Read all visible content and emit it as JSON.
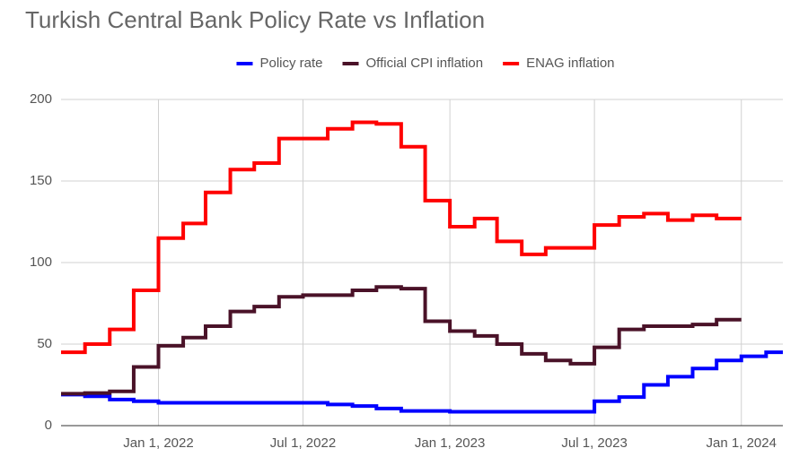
{
  "chart_data": {
    "type": "step-line",
    "title": "Turkish Central Bank Policy Rate vs Inflation",
    "x": [
      "2021-09-01",
      "2021-10-01",
      "2021-11-01",
      "2021-12-01",
      "2022-01-01",
      "2022-02-01",
      "2022-03-01",
      "2022-04-01",
      "2022-05-01",
      "2022-06-01",
      "2022-07-01",
      "2022-08-01",
      "2022-09-01",
      "2022-10-01",
      "2022-11-01",
      "2022-12-01",
      "2023-01-01",
      "2023-02-01",
      "2023-03-01",
      "2023-04-01",
      "2023-05-01",
      "2023-06-01",
      "2023-07-01",
      "2023-08-01",
      "2023-09-01",
      "2023-10-01",
      "2023-11-01",
      "2023-12-01",
      "2024-01-01",
      "2024-02-01"
    ],
    "series": [
      {
        "name": "Policy rate",
        "color": "#0000ff",
        "values": [
          19,
          18,
          16,
          15,
          14,
          14,
          14,
          14,
          14,
          14,
          14,
          13,
          12,
          10.5,
          9,
          9,
          8.5,
          8.5,
          8.5,
          8.5,
          8.5,
          8.5,
          15,
          17.5,
          25,
          30,
          35,
          40,
          42.5,
          45
        ]
      },
      {
        "name": "Official CPI inflation",
        "color": "#4a1228",
        "values": [
          19.6,
          20,
          21,
          36,
          49,
          54,
          61,
          70,
          73,
          79,
          80,
          80,
          83,
          85,
          84,
          64,
          58,
          55,
          50,
          44,
          40,
          38,
          48,
          59,
          61,
          61,
          62,
          65,
          null,
          null
        ]
      },
      {
        "name": "ENAG inflation",
        "color": "#ff0000",
        "values": [
          45,
          50,
          59,
          83,
          115,
          124,
          143,
          157,
          161,
          176,
          176,
          182,
          186,
          185,
          171,
          138,
          122,
          127,
          113,
          105,
          109,
          109,
          123,
          128,
          130,
          126,
          129,
          127,
          null,
          null
        ]
      }
    ],
    "xlim": [
      "2021-09-01",
      "2024-02-22"
    ],
    "xticks": [
      {
        "value": "2022-01-01",
        "label": "Jan 1, 2022"
      },
      {
        "value": "2022-07-01",
        "label": "Jul 1, 2022"
      },
      {
        "value": "2023-01-01",
        "label": "Jan 1, 2023"
      },
      {
        "value": "2023-07-01",
        "label": "Jul 1, 2023"
      },
      {
        "value": "2024-01-01",
        "label": "Jan 1, 2024"
      }
    ],
    "ylim": [
      0,
      200
    ],
    "yticks": [
      0,
      50,
      100,
      150,
      200
    ],
    "grid": true
  }
}
